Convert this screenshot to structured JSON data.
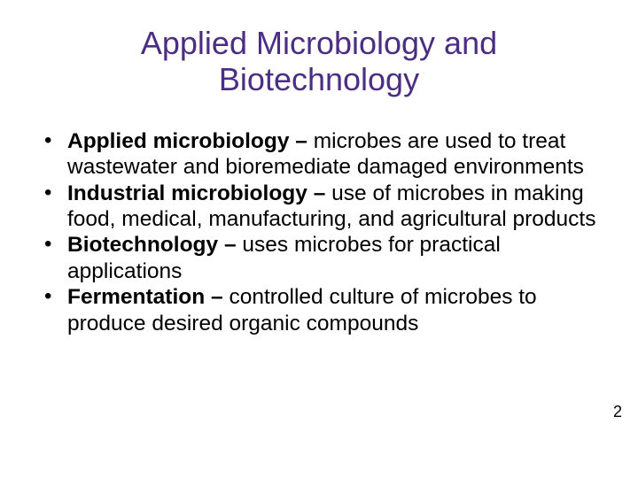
{
  "title_color": "#4b2e83",
  "body_color": "#000000",
  "background_color": "#ffffff",
  "title_fontsize": 36,
  "body_fontsize": 24.5,
  "page_number_fontsize": 18,
  "title": "Applied Microbiology and Biotechnology",
  "page_number": "2",
  "bullets": [
    {
      "term": "Applied microbiology",
      "sep": " – ",
      "definition": "microbes are used to treat wastewater and bioremediate damaged environments"
    },
    {
      "term": "Industrial microbiology",
      "sep": " – ",
      "definition": "use of microbes in making food, medical, manufacturing, and agricultural products"
    },
    {
      "term": "Biotechnology",
      "sep": " – ",
      "definition": "uses microbes for practical applications"
    },
    {
      "term": "Fermentation",
      "sep": " – ",
      "definition": "controlled culture of microbes to produce desired organic compounds"
    }
  ]
}
